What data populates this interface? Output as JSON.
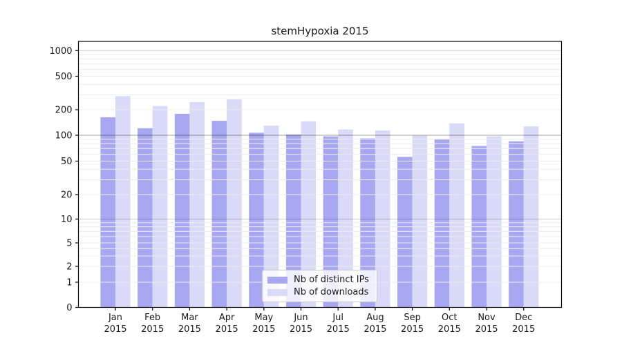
{
  "chart_data": {
    "type": "bar",
    "title": "stemHypoxia 2015",
    "categories": [
      "Jan 2015",
      "Feb 2015",
      "Mar 2015",
      "Apr 2015",
      "May 2015",
      "Jun 2015",
      "Jul 2015",
      "Aug 2015",
      "Sep 2015",
      "Oct 2015",
      "Nov 2015",
      "Dec 2015"
    ],
    "series": [
      {
        "name": "Nb of distinct IPs",
        "color": "#a8a8f2",
        "values": [
          163,
          121,
          179,
          148,
          107,
          102,
          97,
          92,
          56,
          90,
          75,
          85
        ]
      },
      {
        "name": "Nb of downloads",
        "color": "#d9d9f8",
        "values": [
          290,
          221,
          246,
          266,
          130,
          146,
          117,
          114,
          99,
          138,
          97,
          127
        ]
      }
    ],
    "xlabel": "",
    "ylabel": "",
    "yscale": "symlog",
    "y_ticks": [
      0,
      1,
      2,
      5,
      10,
      20,
      50,
      100,
      200,
      500,
      1000
    ],
    "ylim": [
      0,
      1280
    ],
    "grid": {
      "which": "both",
      "emphasized_lines": [
        100,
        10,
        1000
      ],
      "minor_on": true
    },
    "legend_position": "lower center inside"
  },
  "colors": {
    "background": "#ffffff",
    "axis": "#000000",
    "tick_text": "#1a1a1a",
    "grid_minor": "#ececec",
    "grid_decade": "rgba(0,0,0,0.20)",
    "grid_hundred": "rgba(0,0,0,0.30)",
    "legend_border": "#cccccc"
  }
}
